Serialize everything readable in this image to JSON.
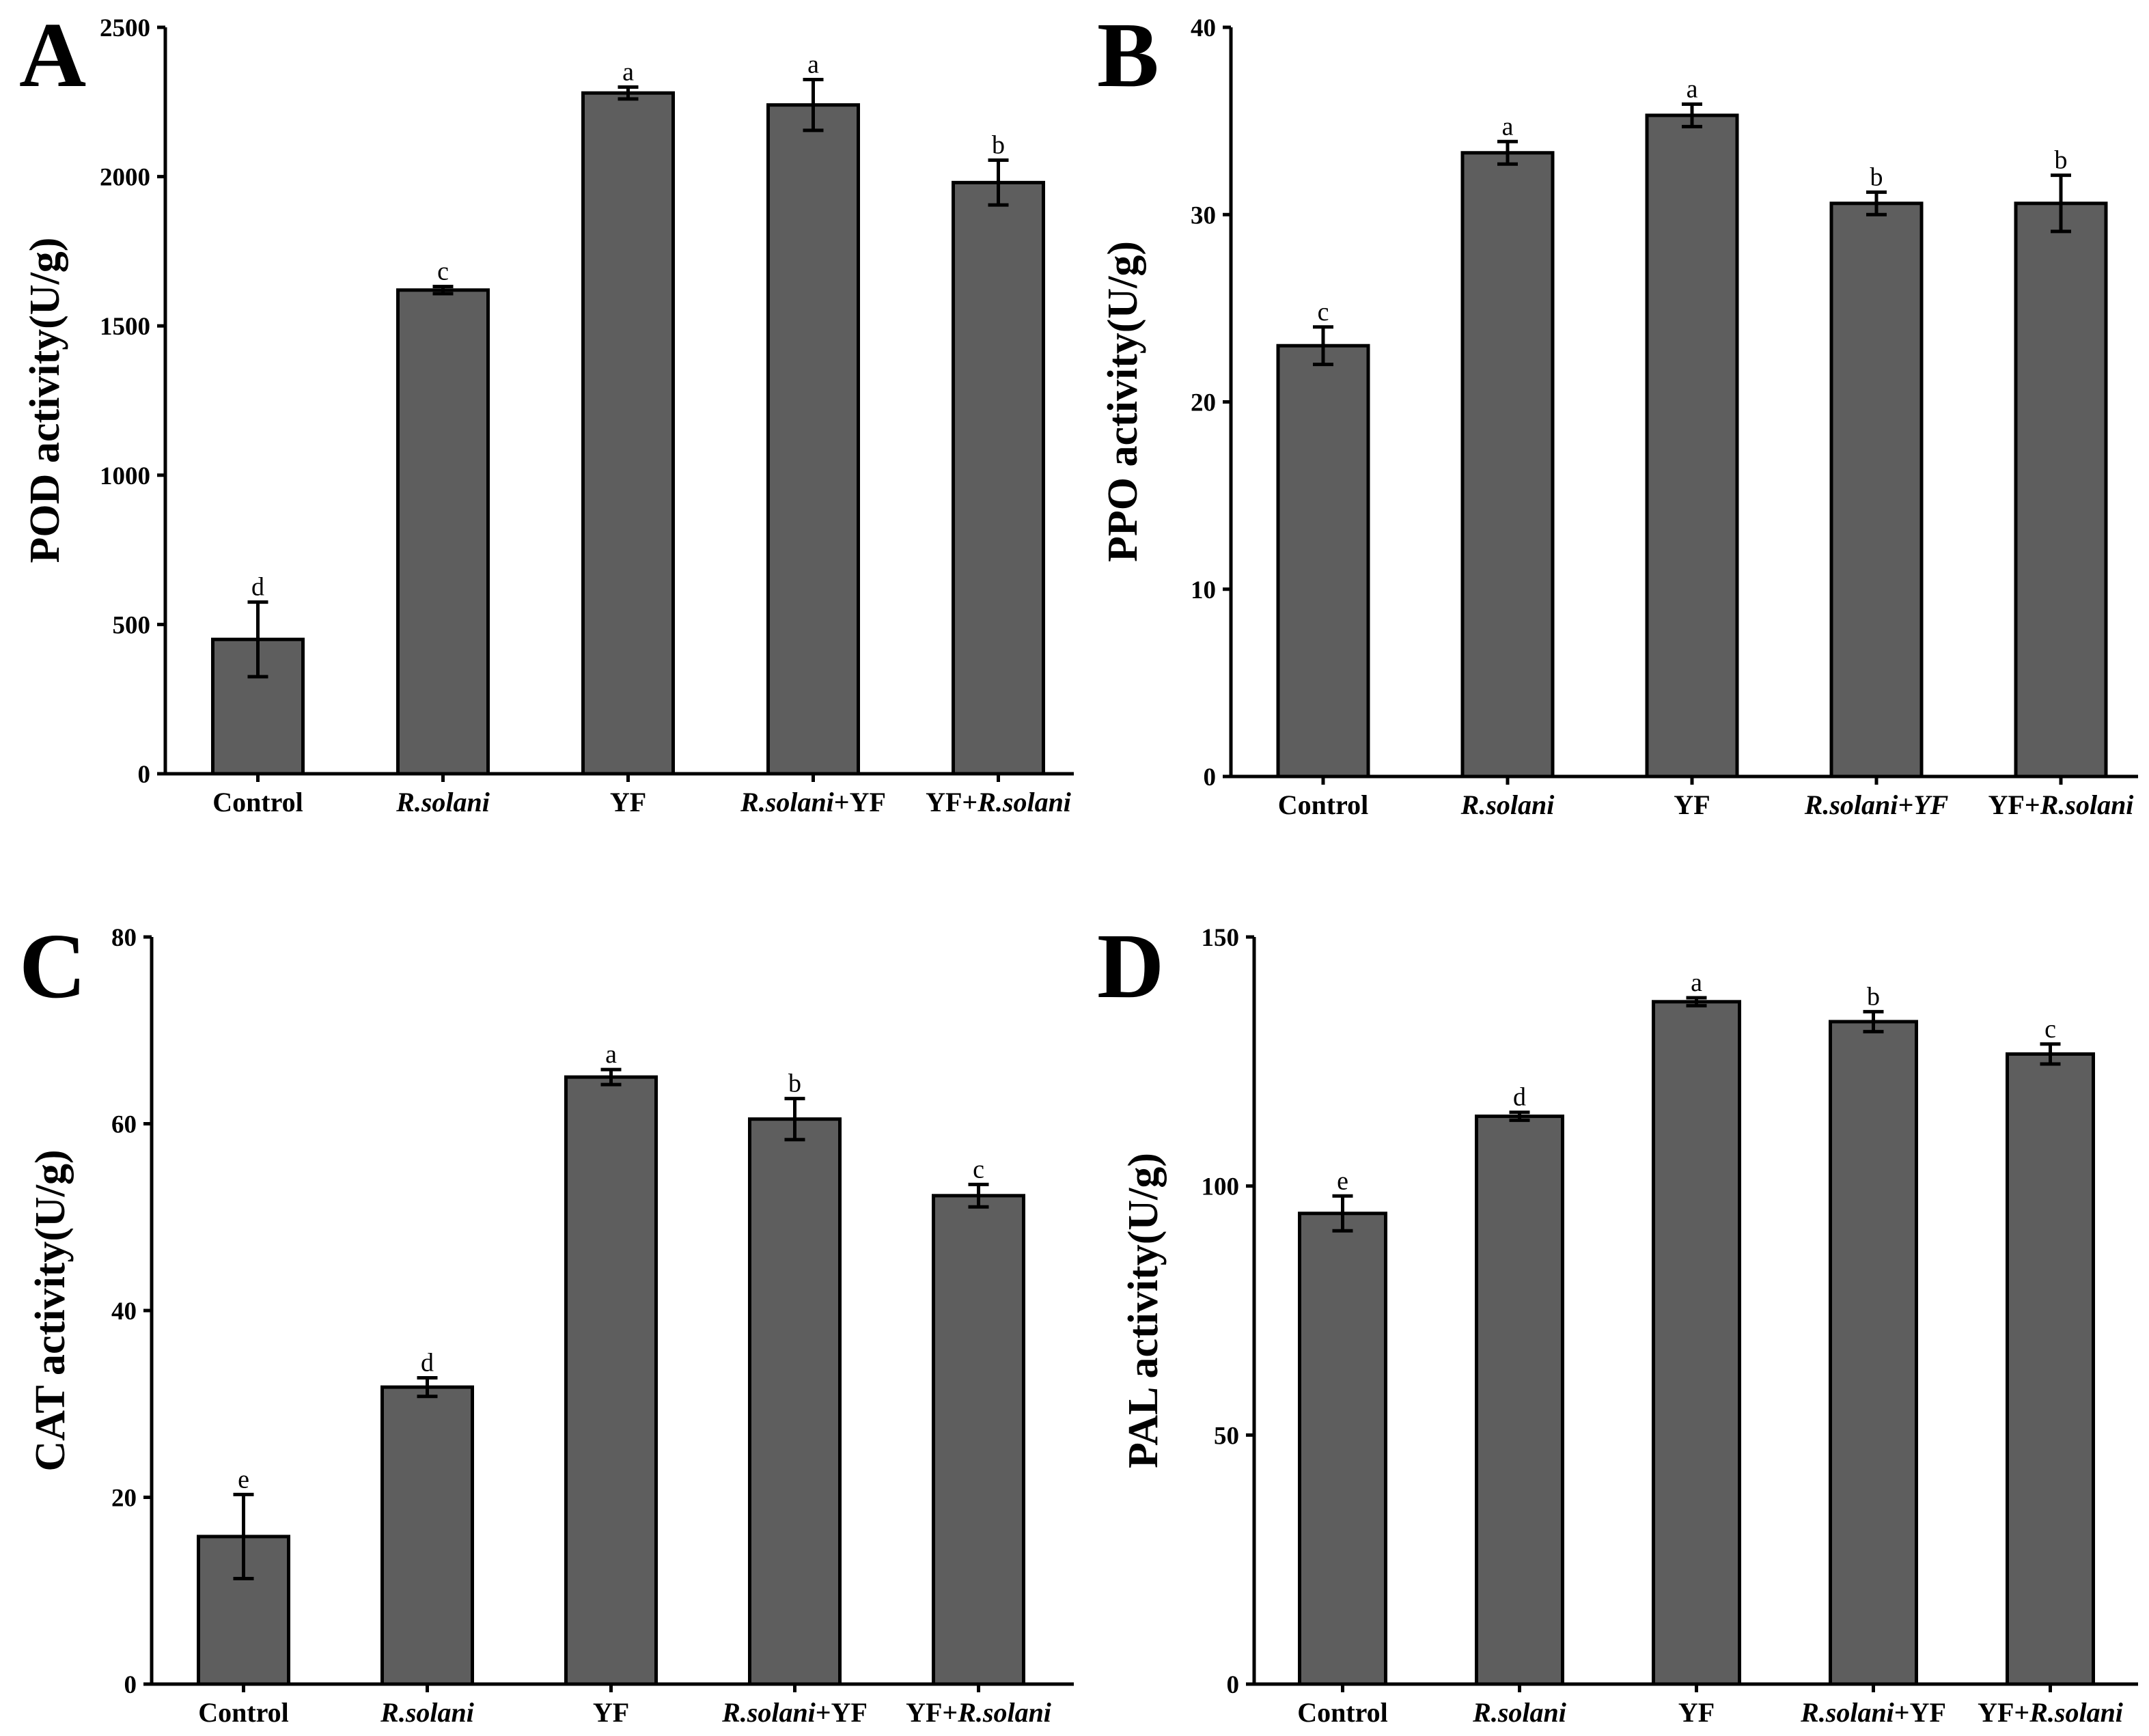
{
  "chart_data": [
    {
      "panel": "A",
      "type": "bar",
      "categories": [
        [
          {
            "text": "Control",
            "italic": false
          }
        ],
        [
          {
            "text": "R.solani",
            "italic": true
          }
        ],
        [
          {
            "text": "YF",
            "italic": false
          }
        ],
        [
          {
            "text": "R.solani",
            "italic": true
          },
          {
            "text": "+YF",
            "italic": false
          }
        ],
        [
          {
            "text": "YF+",
            "italic": false
          },
          {
            "text": "R.solani",
            "italic": true
          }
        ]
      ],
      "values": [
        450,
        1620,
        2280,
        2240,
        1980
      ],
      "errors": [
        125,
        12,
        20,
        85,
        75
      ],
      "letters": [
        "d",
        "c",
        "a",
        "a",
        "b"
      ],
      "ylabel": "POD activity(U/g)",
      "ylim": [
        0,
        2500
      ],
      "yticks": [
        0,
        500,
        1000,
        1500,
        2000,
        2500
      ]
    },
    {
      "panel": "B",
      "type": "bar",
      "categories": [
        [
          {
            "text": "Control",
            "italic": false
          }
        ],
        [
          {
            "text": "R.solani",
            "italic": true
          }
        ],
        [
          {
            "text": "YF",
            "italic": false
          }
        ],
        [
          {
            "text": "R.solani+YF",
            "italic": true
          }
        ],
        [
          {
            "text": "YF+",
            "italic": false
          },
          {
            "text": "R.solani",
            "italic": true
          }
        ]
      ],
      "values": [
        23,
        33.3,
        35.3,
        30.6,
        30.6
      ],
      "errors": [
        1.0,
        0.6,
        0.6,
        0.6,
        1.5
      ],
      "letters": [
        "c",
        "a",
        "a",
        "b",
        "b"
      ],
      "ylabel": "PPO activity(U/g)",
      "ylim": [
        0,
        40
      ],
      "yticks": [
        0,
        10,
        20,
        30,
        40
      ]
    },
    {
      "panel": "C",
      "type": "bar",
      "categories": [
        [
          {
            "text": "Control",
            "italic": false
          }
        ],
        [
          {
            "text": "R.solani",
            "italic": true
          }
        ],
        [
          {
            "text": "YF",
            "italic": false
          }
        ],
        [
          {
            "text": "R.solani",
            "italic": true
          },
          {
            "text": "+YF",
            "italic": false
          }
        ],
        [
          {
            "text": "YF+",
            "italic": false
          },
          {
            "text": "R.solani",
            "italic": true
          }
        ]
      ],
      "values": [
        15.8,
        31.8,
        65.0,
        60.5,
        52.3
      ],
      "errors": [
        4.5,
        1.0,
        0.8,
        2.2,
        1.2
      ],
      "letters": [
        "e",
        "d",
        "a",
        "b",
        "c"
      ],
      "ylabel": "CAT activity(U/g)",
      "ylim": [
        0,
        80
      ],
      "yticks": [
        0,
        20,
        40,
        60,
        80
      ]
    },
    {
      "panel": "D",
      "type": "bar",
      "categories": [
        [
          {
            "text": "Control",
            "italic": false
          }
        ],
        [
          {
            "text": "R.solani",
            "italic": true
          }
        ],
        [
          {
            "text": "YF",
            "italic": false
          }
        ],
        [
          {
            "text": "R.solani",
            "italic": true
          },
          {
            "text": "+YF",
            "italic": false
          }
        ],
        [
          {
            "text": "YF+",
            "italic": false
          },
          {
            "text": "R.solani",
            "italic": true
          }
        ]
      ],
      "values": [
        94.5,
        114,
        137,
        133,
        126.5
      ],
      "errors": [
        3.5,
        0.8,
        0.8,
        2.0,
        2.0
      ],
      "letters": [
        "e",
        "d",
        "a",
        "b",
        "c"
      ],
      "ylabel": "PAL activity(U/g)",
      "ylim": [
        0,
        150
      ],
      "yticks": [
        0,
        50,
        100,
        150
      ]
    }
  ]
}
